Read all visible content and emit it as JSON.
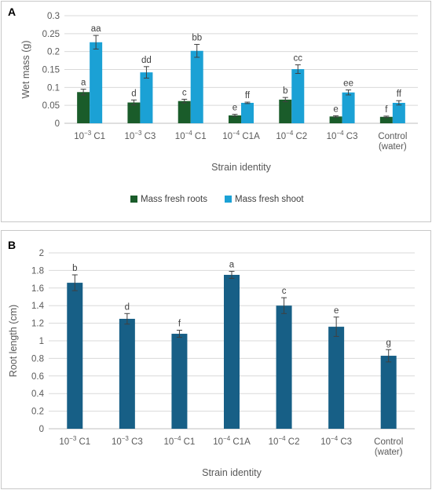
{
  "chart_data": [
    {
      "panel_label": "A",
      "type": "bar",
      "categories": [
        {
          "base": "10",
          "exp": "−3",
          "name": "C1"
        },
        {
          "base": "10",
          "exp": "−3",
          "name": "C3"
        },
        {
          "base": "10",
          "exp": "−4",
          "name": "C1"
        },
        {
          "base": "10",
          "exp": "−4",
          "name": "C1A"
        },
        {
          "base": "10",
          "exp": "−4",
          "name": "C2"
        },
        {
          "base": "10",
          "exp": "−4",
          "name": "C3"
        },
        {
          "line1": "Control",
          "line2": "(water)"
        }
      ],
      "series": [
        {
          "name": "Mass fresh roots",
          "color": "#1a5c2a",
          "values": [
            0.087,
            0.058,
            0.062,
            0.022,
            0.066,
            0.019,
            0.018
          ],
          "errors": [
            0.008,
            0.007,
            0.005,
            0.003,
            0.006,
            0.002,
            0.002
          ],
          "sig_labels": [
            "a",
            "d",
            "c",
            "e",
            "b",
            "e",
            "f"
          ]
        },
        {
          "name": "Mass fresh shoot",
          "color": "#1ba1d5",
          "values": [
            0.226,
            0.142,
            0.202,
            0.057,
            0.151,
            0.086,
            0.057
          ],
          "errors": [
            0.019,
            0.016,
            0.018,
            0.002,
            0.012,
            0.007,
            0.006
          ],
          "sig_labels": [
            "aa",
            "dd",
            "bb",
            "ff",
            "cc",
            "ee",
            "ff"
          ]
        }
      ],
      "xlabel": "Strain identity",
      "ylabel": "Wet mass (g)",
      "ylim": [
        0,
        0.3
      ],
      "yticks": [
        "0",
        "0.05",
        "0.1",
        "0.15",
        "0.2",
        "0.25",
        "0.3"
      ],
      "grid": true,
      "legend": "bottom"
    },
    {
      "panel_label": "B",
      "type": "bar",
      "categories": [
        {
          "base": "10",
          "exp": "−3",
          "name": "C1"
        },
        {
          "base": "10",
          "exp": "−3",
          "name": "C3"
        },
        {
          "base": "10",
          "exp": "−4",
          "name": "C1"
        },
        {
          "base": "10",
          "exp": "−4",
          "name": "C1A"
        },
        {
          "base": "10",
          "exp": "−4",
          "name": "C2"
        },
        {
          "base": "10",
          "exp": "−4",
          "name": "C3"
        },
        {
          "line1": "Control",
          "line2": "(water)"
        }
      ],
      "series": [
        {
          "color": "#175f86",
          "values": [
            1.66,
            1.25,
            1.08,
            1.75,
            1.4,
            1.16,
            0.83
          ],
          "errors": [
            0.09,
            0.06,
            0.04,
            0.04,
            0.09,
            0.11,
            0.07
          ],
          "sig_labels": [
            "b",
            "d",
            "f",
            "a",
            "c",
            "e",
            "g"
          ]
        }
      ],
      "xlabel": "Strain identity",
      "ylabel": "Root length (cm)",
      "ylim": [
        0,
        2
      ],
      "yticks": [
        "0",
        "0.2",
        "0.4",
        "0.6",
        "0.8",
        "1",
        "1.2",
        "1.4",
        "1.6",
        "1.8",
        "2"
      ],
      "grid": true
    }
  ]
}
